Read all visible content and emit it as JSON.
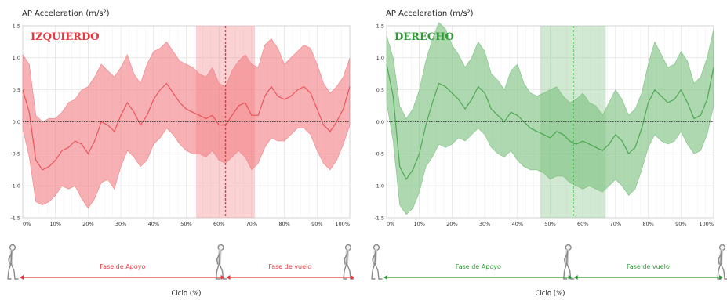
{
  "chart_data": [
    {
      "type": "line",
      "panel_label": "IZQUIERDO",
      "ylabel": "AP Acceleration (m/s²)",
      "xlabel": "Ciclo (%)",
      "ylim": [
        -1.5,
        1.5
      ],
      "xlim": [
        0,
        100
      ],
      "grid": true,
      "y_ticks": [
        "1,5",
        "1,0",
        "0,5",
        "0,0",
        "-0,5",
        "-1,0",
        "-1,5"
      ],
      "x_ticks": [
        "0%",
        "10%",
        "20%",
        "30%",
        "40%",
        "50%",
        "60%",
        "70%",
        "80%",
        "90%",
        "100%"
      ],
      "toe_off": 62,
      "highlight_range": [
        53,
        71
      ],
      "phases": {
        "stance": "Fase de Apoyo",
        "swing": "Fase de vuelo"
      },
      "color": "#e8383d",
      "band_color": "#f27f84",
      "x": [
        0,
        2,
        4,
        6,
        8,
        10,
        12,
        14,
        16,
        18,
        20,
        22,
        24,
        26,
        28,
        30,
        32,
        34,
        36,
        38,
        40,
        42,
        44,
        46,
        48,
        50,
        52,
        54,
        56,
        58,
        60,
        62,
        64,
        66,
        68,
        70,
        72,
        74,
        76,
        78,
        80,
        82,
        84,
        86,
        88,
        90,
        92,
        94,
        96,
        98,
        100
      ],
      "mean": [
        0.5,
        0.15,
        -0.6,
        -0.75,
        -0.7,
        -0.6,
        -0.45,
        -0.4,
        -0.3,
        -0.35,
        -0.5,
        -0.3,
        0.0,
        -0.05,
        -0.15,
        0.1,
        0.3,
        0.15,
        -0.05,
        0.1,
        0.35,
        0.5,
        0.6,
        0.45,
        0.3,
        0.2,
        0.15,
        0.1,
        0.05,
        0.1,
        -0.05,
        -0.05,
        0.1,
        0.25,
        0.3,
        0.1,
        0.1,
        0.4,
        0.55,
        0.4,
        0.35,
        0.4,
        0.5,
        0.55,
        0.45,
        0.2,
        -0.05,
        -0.15,
        0.0,
        0.2,
        0.55
      ],
      "upper": [
        1.05,
        0.9,
        0.1,
        0.0,
        0.05,
        0.05,
        0.15,
        0.3,
        0.35,
        0.5,
        0.55,
        0.7,
        0.9,
        0.8,
        0.7,
        0.85,
        1.05,
        0.75,
        0.6,
        0.9,
        1.1,
        1.15,
        1.25,
        1.1,
        0.95,
        0.9,
        0.85,
        0.75,
        0.7,
        0.85,
        0.6,
        0.55,
        0.8,
        0.95,
        1.05,
        0.9,
        0.85,
        1.2,
        1.3,
        1.15,
        0.9,
        1.0,
        1.1,
        1.2,
        1.15,
        0.9,
        0.6,
        0.45,
        0.55,
        0.7,
        1.0
      ],
      "lower": [
        -0.1,
        -0.55,
        -1.25,
        -1.3,
        -1.25,
        -1.15,
        -1.0,
        -1.05,
        -1.0,
        -1.2,
        -1.35,
        -1.2,
        -0.95,
        -0.9,
        -1.05,
        -0.7,
        -0.45,
        -0.55,
        -0.7,
        -0.6,
        -0.35,
        -0.25,
        -0.1,
        -0.2,
        -0.35,
        -0.45,
        -0.5,
        -0.5,
        -0.55,
        -0.45,
        -0.6,
        -0.65,
        -0.55,
        -0.45,
        -0.55,
        -0.75,
        -0.65,
        -0.4,
        -0.25,
        -0.3,
        -0.3,
        -0.2,
        -0.1,
        -0.1,
        -0.2,
        -0.45,
        -0.65,
        -0.75,
        -0.6,
        -0.35,
        -0.05
      ]
    },
    {
      "type": "line",
      "panel_label": "DERECHO",
      "ylabel": "AP Acceleration (m/s²)",
      "xlabel": "Ciclo (%)",
      "ylim": [
        -1.5,
        1.5
      ],
      "xlim": [
        0,
        100
      ],
      "grid": true,
      "y_ticks": [
        "1,5",
        "1,0",
        "0,5",
        "0,0",
        "-0,5",
        "-1,0",
        "-1,5"
      ],
      "x_ticks": [
        "0%",
        "10%",
        "20%",
        "30%",
        "40%",
        "50%",
        "60%",
        "70%",
        "80%",
        "90%",
        "100%"
      ],
      "toe_off": 57,
      "highlight_range": [
        47,
        67
      ],
      "phases": {
        "stance": "Fase de Apoyo",
        "swing": "Fase de vuelo"
      },
      "color": "#2e9a34",
      "band_color": "#7cc07f",
      "x": [
        0,
        2,
        4,
        6,
        8,
        10,
        12,
        14,
        16,
        18,
        20,
        22,
        24,
        26,
        28,
        30,
        32,
        34,
        36,
        38,
        40,
        42,
        44,
        46,
        48,
        50,
        52,
        54,
        56,
        58,
        60,
        62,
        64,
        66,
        68,
        70,
        72,
        74,
        76,
        78,
        80,
        82,
        84,
        86,
        88,
        90,
        92,
        94,
        96,
        98,
        100
      ],
      "mean": [
        0.9,
        0.4,
        -0.7,
        -0.9,
        -0.75,
        -0.5,
        -0.05,
        0.3,
        0.6,
        0.55,
        0.45,
        0.35,
        0.2,
        0.35,
        0.55,
        0.45,
        0.2,
        0.1,
        0.0,
        0.15,
        0.1,
        0.0,
        -0.1,
        -0.15,
        -0.2,
        -0.25,
        -0.15,
        -0.2,
        -0.3,
        -0.35,
        -0.3,
        -0.35,
        -0.4,
        -0.45,
        -0.35,
        -0.2,
        -0.3,
        -0.5,
        -0.4,
        -0.1,
        0.3,
        0.5,
        0.4,
        0.3,
        0.35,
        0.5,
        0.3,
        0.05,
        0.1,
        0.35,
        0.85
      ],
      "upper": [
        1.35,
        1.0,
        0.25,
        0.05,
        0.2,
        0.5,
        0.95,
        1.3,
        1.55,
        1.45,
        1.2,
        1.05,
        0.85,
        1.0,
        1.25,
        1.1,
        0.75,
        0.65,
        0.5,
        0.8,
        0.9,
        0.6,
        0.45,
        0.4,
        0.45,
        0.5,
        0.55,
        0.4,
        0.3,
        0.35,
        0.45,
        0.3,
        0.25,
        0.1,
        0.3,
        0.5,
        0.35,
        0.1,
        0.2,
        0.45,
        0.9,
        1.25,
        1.05,
        0.85,
        0.9,
        1.1,
        0.95,
        0.6,
        0.7,
        1.0,
        1.45
      ],
      "lower": [
        0.3,
        -0.3,
        -1.3,
        -1.45,
        -1.35,
        -1.1,
        -0.7,
        -0.55,
        -0.35,
        -0.4,
        -0.35,
        -0.25,
        -0.3,
        -0.2,
        -0.1,
        -0.2,
        -0.4,
        -0.5,
        -0.55,
        -0.45,
        -0.6,
        -0.7,
        -0.75,
        -0.75,
        -0.8,
        -0.9,
        -0.85,
        -0.85,
        -0.95,
        -1.0,
        -1.05,
        -1.0,
        -1.05,
        -1.1,
        -1.0,
        -0.9,
        -1.0,
        -1.15,
        -1.05,
        -0.75,
        -0.4,
        -0.2,
        -0.3,
        -0.35,
        -0.3,
        -0.15,
        -0.35,
        -0.5,
        -0.45,
        -0.2,
        0.25
      ]
    }
  ]
}
